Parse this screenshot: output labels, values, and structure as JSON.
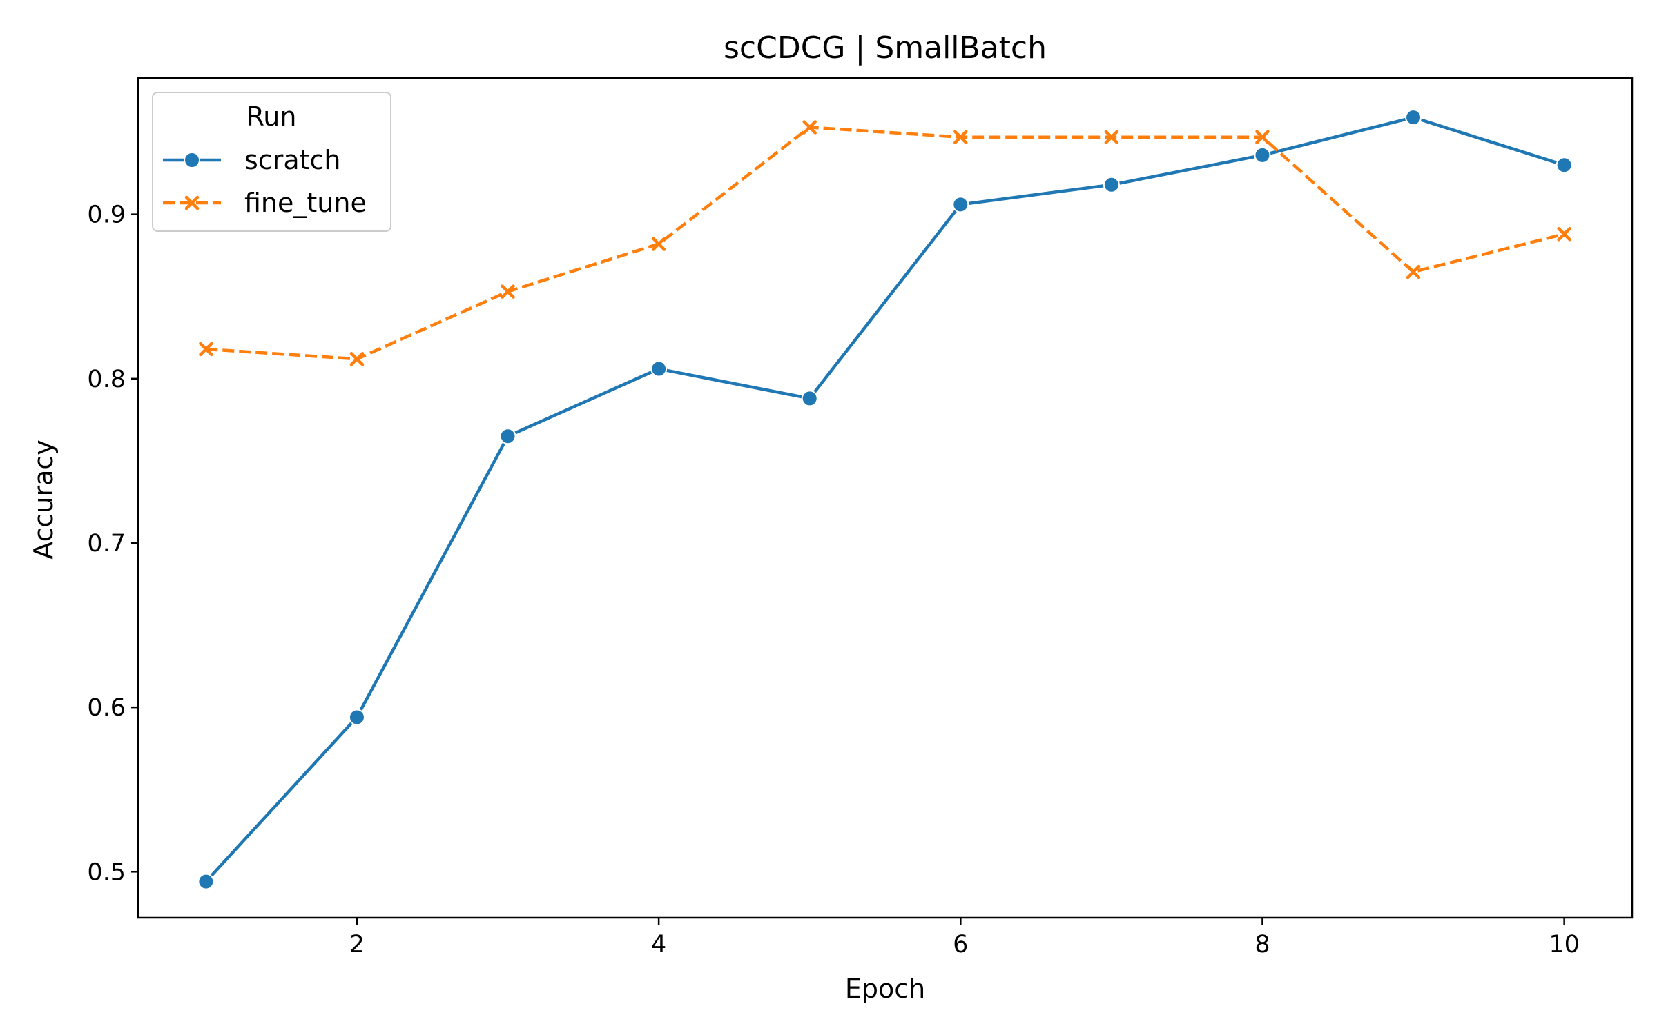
{
  "chart_data": {
    "type": "line",
    "title": "scCDCG | SmallBatch",
    "xlabel": "Epoch",
    "ylabel": "Accuracy",
    "xlim": [
      0.55,
      10.45
    ],
    "ylim": [
      0.472,
      0.983
    ],
    "xticks": [
      2,
      4,
      6,
      8,
      10
    ],
    "yticks": [
      0.5,
      0.6,
      0.7,
      0.8,
      0.9
    ],
    "xtick_labels": [
      "2",
      "4",
      "6",
      "8",
      "10"
    ],
    "ytick_labels": [
      "0.5",
      "0.6",
      "0.7",
      "0.8",
      "0.9"
    ],
    "grid": false,
    "legend": {
      "title": "Run",
      "placement": "top-left"
    },
    "x": [
      1,
      2,
      3,
      4,
      5,
      6,
      7,
      8,
      9,
      10
    ],
    "series": [
      {
        "name": "scratch",
        "color": "#1f77b4",
        "marker": "circle",
        "linestyle": "solid",
        "values": [
          0.494,
          0.594,
          0.765,
          0.806,
          0.788,
          0.906,
          0.918,
          0.936,
          0.959,
          0.93
        ]
      },
      {
        "name": "fine_tune",
        "color": "#ff7f0e",
        "marker": "x",
        "linestyle": "dashed",
        "values": [
          0.818,
          0.812,
          0.853,
          0.882,
          0.953,
          0.947,
          0.947,
          0.947,
          0.865,
          0.888
        ]
      }
    ]
  }
}
